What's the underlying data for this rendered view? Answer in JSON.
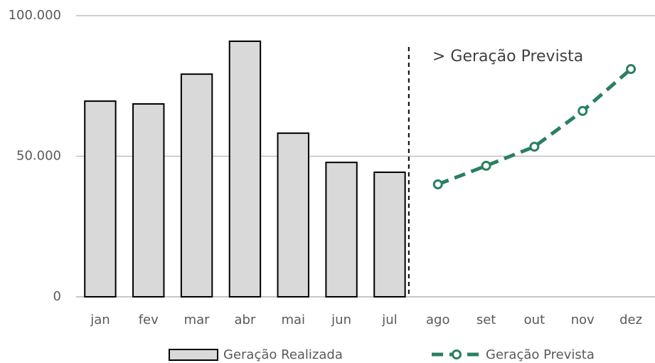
{
  "chart_data": {
    "type": "combo",
    "categories": [
      "jan",
      "fev",
      "mar",
      "abr",
      "mai",
      "jun",
      "jul",
      "ago",
      "set",
      "out",
      "nov",
      "dez"
    ],
    "series": [
      {
        "name": "Geração Realizada",
        "type": "bar",
        "color": "#d9d9d9",
        "values": [
          69600,
          68600,
          79200,
          90900,
          58200,
          47800,
          44300,
          null,
          null,
          null,
          null,
          null
        ]
      },
      {
        "name": "Geração Prevista",
        "type": "line",
        "color": "#2a8060",
        "values": [
          null,
          null,
          null,
          null,
          null,
          null,
          null,
          40000,
          46600,
          53400,
          66100,
          81000
        ]
      }
    ],
    "annotation": "> Geração Prevista",
    "ylim": [
      0,
      100000
    ],
    "yticks": [
      0,
      {
        "value": 50000,
        "label": "50.000"
      },
      {
        "value": 100000,
        "label": "100.000"
      }
    ],
    "grid": true,
    "legend": "bottom"
  }
}
